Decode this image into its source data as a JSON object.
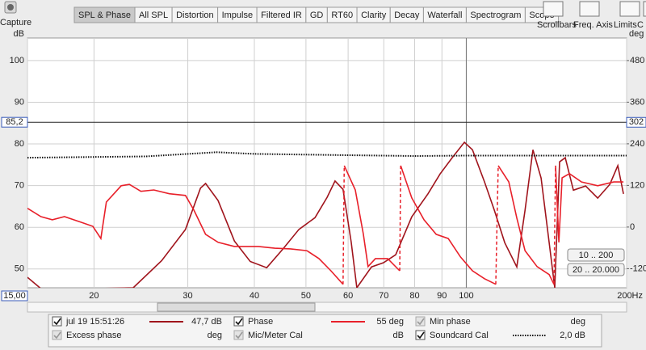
{
  "toolbar": {
    "capture": "Capture",
    "tabs": [
      "SPL & Phase",
      "All SPL",
      "Distortion",
      "Impulse",
      "Filtered IR",
      "GD",
      "RT60",
      "Clarity",
      "Decay",
      "Waterfall",
      "Spectrogram",
      "Scope"
    ],
    "active_tab": 0,
    "tools": [
      "Scrollbars",
      "Freq. Axis",
      "Limits",
      "C"
    ]
  },
  "chart_data": {
    "type": "line",
    "y_unit": "dB",
    "y2_unit": "deg",
    "log_x": true,
    "grid": true,
    "xlim": [
      15,
      200
    ],
    "xticks": [
      {
        "value": 15,
        "label": "15,00"
      },
      20,
      30,
      40,
      50,
      60,
      70,
      80,
      90,
      100,
      {
        "value": 200,
        "label": "200Hz"
      }
    ],
    "ylim": [
      45.5,
      105.4
    ],
    "yticks": [
      50,
      60,
      70,
      80,
      90,
      100
    ],
    "y2lim": [
      -175,
      545
    ],
    "y2ticks": [
      -120,
      0,
      120,
      240,
      360,
      480
    ],
    "cursor": {
      "x": 100,
      "y": {
        "value": 85.2,
        "label": "85,2"
      },
      "y2": 302
    },
    "series": [
      {
        "name": "jul 19 15:51:26",
        "color": "#a0141c",
        "x": [
          15,
          16,
          23.7,
          26.8,
          29.7,
          31.7,
          32.4,
          34.2,
          36.7,
          39.3,
          42.2,
          45.2,
          48.5,
          52,
          54.8,
          56.7,
          58.7,
          60.8,
          62.3,
          66.4,
          69.9,
          73.7,
          79,
          84.7,
          89.3,
          94.1,
          99.2,
          102.7,
          108.2,
          112.9,
          118.1,
          124.4,
          128.9,
          133.4,
          138.2,
          143.1,
          146.6,
          149.7,
          153.4,
          158.9,
          167.5,
          176.5,
          186,
          192.5,
          197.3
        ],
        "values": [
          48,
          45,
          45.5,
          52,
          59.5,
          69.4,
          70.5,
          66.4,
          56.7,
          51.8,
          50.3,
          54.7,
          59.5,
          62.3,
          67.2,
          71.1,
          69.1,
          56.5,
          45.5,
          50.5,
          51.5,
          53.4,
          62.5,
          68,
          72.8,
          76.7,
          80.4,
          78.6,
          70.9,
          64.1,
          56.3,
          50.5,
          64.1,
          78.6,
          71.8,
          56.3,
          45.5,
          75.7,
          76.7,
          68.9,
          69.9,
          67,
          70.3,
          74.8,
          68
        ]
      },
      {
        "name": "Phase",
        "color": "#e8202a",
        "axis": "y2",
        "x": [
          15,
          15.9,
          16.7,
          17.6,
          18.9,
          19.9,
          20.6,
          21.1,
          22.5,
          23.3,
          24.5,
          25.9,
          27.7,
          29.7,
          30.8,
          32.4,
          34.2,
          36.7,
          40.7,
          43.7,
          46.8,
          50.2,
          52.9,
          55.7,
          58.7,
          null,
          59,
          61.9,
          64.1,
          65.4,
          67.5,
          71.2,
          75,
          null,
          75.3,
          79,
          83.3,
          87.8,
          92.5,
          97.5,
          102.7,
          108.2,
          113.6,
          null,
          114.8,
          120.2,
          124.4,
          128.9,
          135.8,
          143.1,
          146.1,
          null,
          147.1,
          149.2,
          151.3,
          156.2,
          164.6,
          176.5,
          189.2,
          197.3
        ],
        "values": [
          54,
          30,
          21,
          30,
          14,
          2,
          -33,
          72,
          119,
          123,
          103,
          107,
          96,
          91,
          49,
          -21,
          -44,
          -56,
          -56,
          -61,
          -63,
          -68,
          -91,
          -126,
          -165,
          null,
          177,
          107,
          -21,
          -114,
          -91,
          -91,
          -126,
          null,
          177,
          84,
          21,
          -21,
          -33,
          -86,
          -126,
          -149,
          -165,
          null,
          177,
          130,
          26,
          -68,
          -114,
          -137,
          -165,
          null,
          177,
          -44,
          142,
          154,
          130,
          119,
          130,
          130
        ]
      },
      {
        "name": "Soundcard Cal",
        "color": "#111111",
        "dash": true,
        "x": [
          15,
          25,
          34,
          40,
          60,
          80,
          100,
          200
        ],
        "values": [
          76.7,
          77,
          78,
          77.6,
          77.3,
          77.1,
          77.2,
          77.2
        ]
      }
    ]
  },
  "range_buttons": [
    "10 .. 200",
    "20 .. 20.000"
  ],
  "legend": [
    {
      "series": 0,
      "checked": true,
      "enabled": true,
      "readout": "47,7 dB"
    },
    {
      "series": 1,
      "checked": true,
      "enabled": true,
      "readout": "55 deg"
    },
    {
      "label": "Min phase",
      "checked": true,
      "enabled": false,
      "readout": "deg"
    },
    {
      "label": "Excess phase",
      "checked": true,
      "enabled": false,
      "readout": "deg"
    },
    {
      "label": "Mic/Meter Cal",
      "checked": true,
      "enabled": false,
      "readout": "dB"
    },
    {
      "series": 2,
      "checked": true,
      "enabled": true,
      "readout": "2,0 dB"
    }
  ]
}
